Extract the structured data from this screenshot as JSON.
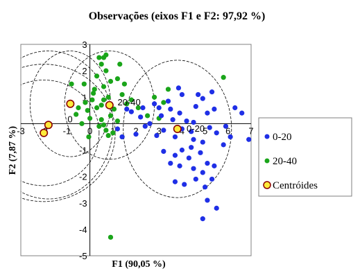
{
  "chart_data": {
    "type": "scatter",
    "title": "Observações (eixos F1 e F2: 97,92 %)",
    "xlabel": "F1 (90,05 %)",
    "ylabel": "F2 (7,87 %)",
    "xlim": [
      -3,
      7
    ],
    "ylim": [
      -5,
      3
    ],
    "x_ticks": [
      "-3",
      "-2",
      "-1",
      "0",
      "1",
      "2",
      "3",
      "4",
      "5",
      "6",
      "7"
    ],
    "y_ticks": [
      "3",
      "2",
      "1",
      "0",
      "-1",
      "-2",
      "-3",
      "-4",
      "-5"
    ],
    "grid": false,
    "legend_position": "right",
    "colors": {
      "s0_20": "#1f2fe6",
      "s20_40": "#1aa51a",
      "centroid_fill": "#ffeb3b",
      "centroid_stroke": "#8b0000"
    },
    "series": [
      {
        "name": "0-20",
        "color": "#1f2fe6",
        "points": [
          [
            3.85,
            1.35
          ],
          [
            4.0,
            1.1
          ],
          [
            3.4,
            0.85
          ],
          [
            2.8,
            0.75
          ],
          [
            3.0,
            0.6
          ],
          [
            3.5,
            0.55
          ],
          [
            3.1,
            0.3
          ],
          [
            3.6,
            0.15
          ],
          [
            4.2,
            0.1
          ],
          [
            4.5,
            0.05
          ],
          [
            2.6,
            0.0
          ],
          [
            4.0,
            -0.2
          ],
          [
            3.2,
            -0.25
          ],
          [
            2.9,
            -0.45
          ],
          [
            3.7,
            -0.5
          ],
          [
            4.5,
            -0.6
          ],
          [
            2.4,
            -0.1
          ],
          [
            2.2,
            0.25
          ],
          [
            1.8,
            0.45
          ],
          [
            2.0,
            -0.4
          ],
          [
            4.6,
            0.65
          ],
          [
            4.9,
            0.95
          ],
          [
            5.1,
            0.4
          ],
          [
            5.4,
            0.55
          ],
          [
            5.2,
            -0.15
          ],
          [
            5.5,
            -0.35
          ],
          [
            4.4,
            -0.3
          ],
          [
            4.9,
            -0.7
          ],
          [
            4.4,
            -0.9
          ],
          [
            4.0,
            -1.0
          ],
          [
            3.7,
            -1.2
          ],
          [
            3.2,
            -1.05
          ],
          [
            3.5,
            -1.5
          ],
          [
            3.9,
            -1.6
          ],
          [
            4.3,
            -1.3
          ],
          [
            4.8,
            -1.1
          ],
          [
            5.1,
            -1.5
          ],
          [
            4.5,
            -1.7
          ],
          [
            4.9,
            -1.85
          ],
          [
            5.4,
            -1.6
          ],
          [
            5.8,
            -0.8
          ],
          [
            6.1,
            -0.5
          ],
          [
            5.9,
            -0.1
          ],
          [
            6.3,
            0.6
          ],
          [
            6.6,
            0.4
          ],
          [
            6.9,
            -0.6
          ],
          [
            4.7,
            1.1
          ],
          [
            5.3,
            1.2
          ],
          [
            3.7,
            -2.2
          ],
          [
            4.1,
            -2.3
          ],
          [
            5.0,
            -2.4
          ],
          [
            4.6,
            -2.1
          ],
          [
            5.3,
            -2.1
          ],
          [
            5.5,
            -3.2
          ],
          [
            5.1,
            -2.9
          ],
          [
            4.9,
            -3.6
          ],
          [
            1.6,
            0.55
          ],
          [
            1.4,
            -0.5
          ],
          [
            1.2,
            -0.2
          ],
          [
            3.9,
            0.4
          ],
          [
            2.3,
            0.6
          ]
        ]
      },
      {
        "name": "20-40",
        "color": "#1aa51a",
        "points": [
          [
            0.4,
            2.5
          ],
          [
            0.6,
            2.5
          ],
          [
            0.7,
            2.6
          ],
          [
            0.5,
            2.25
          ],
          [
            1.3,
            2.25
          ],
          [
            0.7,
            2.0
          ],
          [
            0.3,
            1.8
          ],
          [
            1.5,
            1.5
          ],
          [
            0.9,
            1.6
          ],
          [
            1.2,
            1.7
          ],
          [
            0.6,
            1.4
          ],
          [
            0.2,
            1.3
          ],
          [
            1.4,
            1.1
          ],
          [
            0.8,
            1.0
          ],
          [
            0.1,
            0.9
          ],
          [
            -0.2,
            0.8
          ],
          [
            0.3,
            0.6
          ],
          [
            -0.1,
            0.5
          ],
          [
            0.0,
            0.2
          ],
          [
            0.5,
            0.7
          ],
          [
            0.9,
            0.3
          ],
          [
            1.2,
            0.1
          ],
          [
            0.4,
            -0.1
          ],
          [
            0.7,
            -0.25
          ],
          [
            1.4,
            -0.5
          ],
          [
            0.6,
            -0.05
          ],
          [
            -0.05,
            -0.5
          ],
          [
            -0.35,
            0.0
          ],
          [
            -0.5,
            0.6
          ],
          [
            -0.8,
            1.5
          ],
          [
            1.0,
            -0.35
          ],
          [
            0.8,
            -0.45
          ],
          [
            2.5,
            0.3
          ],
          [
            2.8,
            1.0
          ],
          [
            3.2,
            0.8
          ],
          [
            3.4,
            1.3
          ],
          [
            3.0,
            0.2
          ],
          [
            5.8,
            1.75
          ],
          [
            1.05,
            0.55
          ],
          [
            0.5,
            0.15
          ],
          [
            0.9,
            -4.3
          ],
          [
            0.15,
            1.15
          ],
          [
            -0.25,
            1.5
          ],
          [
            0.6,
            0.9
          ],
          [
            -0.6,
            0.35
          ],
          [
            1.6,
            0.75
          ],
          [
            1.8,
            0.9
          ],
          [
            2.1,
            0.6
          ]
        ]
      },
      {
        "name": "Centróides",
        "color": "#ffeb3b",
        "points": [
          [
            -2.0,
            -0.35
          ],
          [
            -1.8,
            -0.05
          ],
          [
            -0.85,
            0.75
          ],
          [
            0.85,
            0.7
          ],
          [
            3.8,
            -0.2
          ]
        ]
      }
    ],
    "annotations": [
      {
        "text": "20-40",
        "x": 1.2,
        "y": 0.8
      },
      {
        "text": "0-20",
        "x": 4.2,
        "y": -0.2
      }
    ],
    "ellipses": [
      {
        "cx": -2.0,
        "cy": -0.35,
        "rx": 3.1,
        "ry": 2.6
      },
      {
        "cx": -2.0,
        "cy": -0.35,
        "rx": 2.4,
        "ry": 2.0
      },
      {
        "cx": -1.8,
        "cy": -0.05,
        "rx": 2.8,
        "ry": 2.8
      },
      {
        "cx": -0.85,
        "cy": 0.75,
        "rx": 1.75,
        "ry": 2.0
      },
      {
        "cx": 0.85,
        "cy": 0.7,
        "rx": 1.95,
        "ry": 2.05
      },
      {
        "cx": 3.8,
        "cy": -0.2,
        "rx": 2.35,
        "ry": 2.6
      }
    ]
  }
}
